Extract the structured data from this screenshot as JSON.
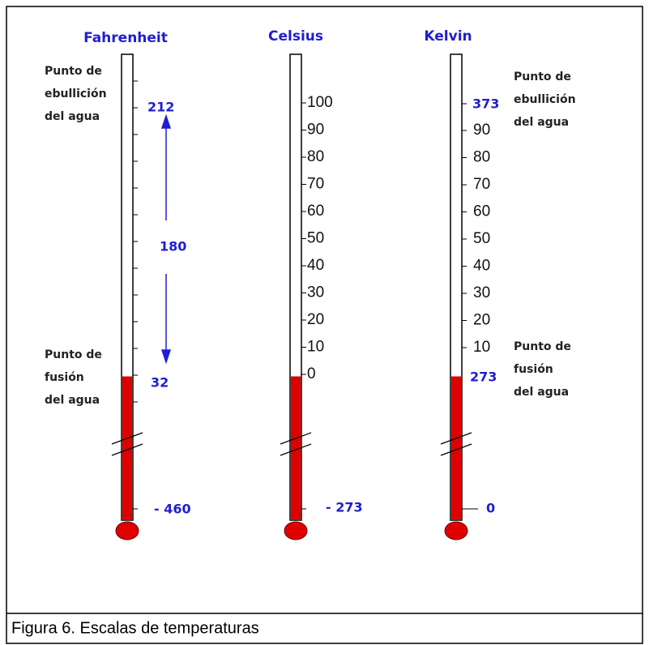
{
  "thermometers": [
    {
      "title": "Fahrenheit",
      "boiling": "212",
      "freezing": "32",
      "absolute_zero": "- 460"
    },
    {
      "title": "Celsius",
      "scale": [
        "100",
        "90",
        "80",
        "70",
        "60",
        "50",
        "40",
        "30",
        "20",
        "10",
        "0"
      ],
      "absolute_zero": "- 273"
    },
    {
      "title": "Kelvin",
      "boiling": "373",
      "scale": [
        "90",
        "80",
        "70",
        "60",
        "50",
        "40",
        "30",
        "20",
        "10"
      ],
      "freezing": "273",
      "absolute_zero": "0"
    }
  ],
  "interval": "180",
  "left_notes": {
    "boiling": [
      "Punto de",
      "ebullición",
      "del agua"
    ],
    "freezing": [
      "Punto de",
      "fusión",
      "del agua"
    ]
  },
  "right_notes": {
    "boiling": [
      "Punto de",
      "ebullición",
      "del agua"
    ],
    "freezing": [
      "Punto de",
      "fusión",
      "del agua"
    ]
  },
  "caption": "Figura 6.  Escalas de temperaturas"
}
